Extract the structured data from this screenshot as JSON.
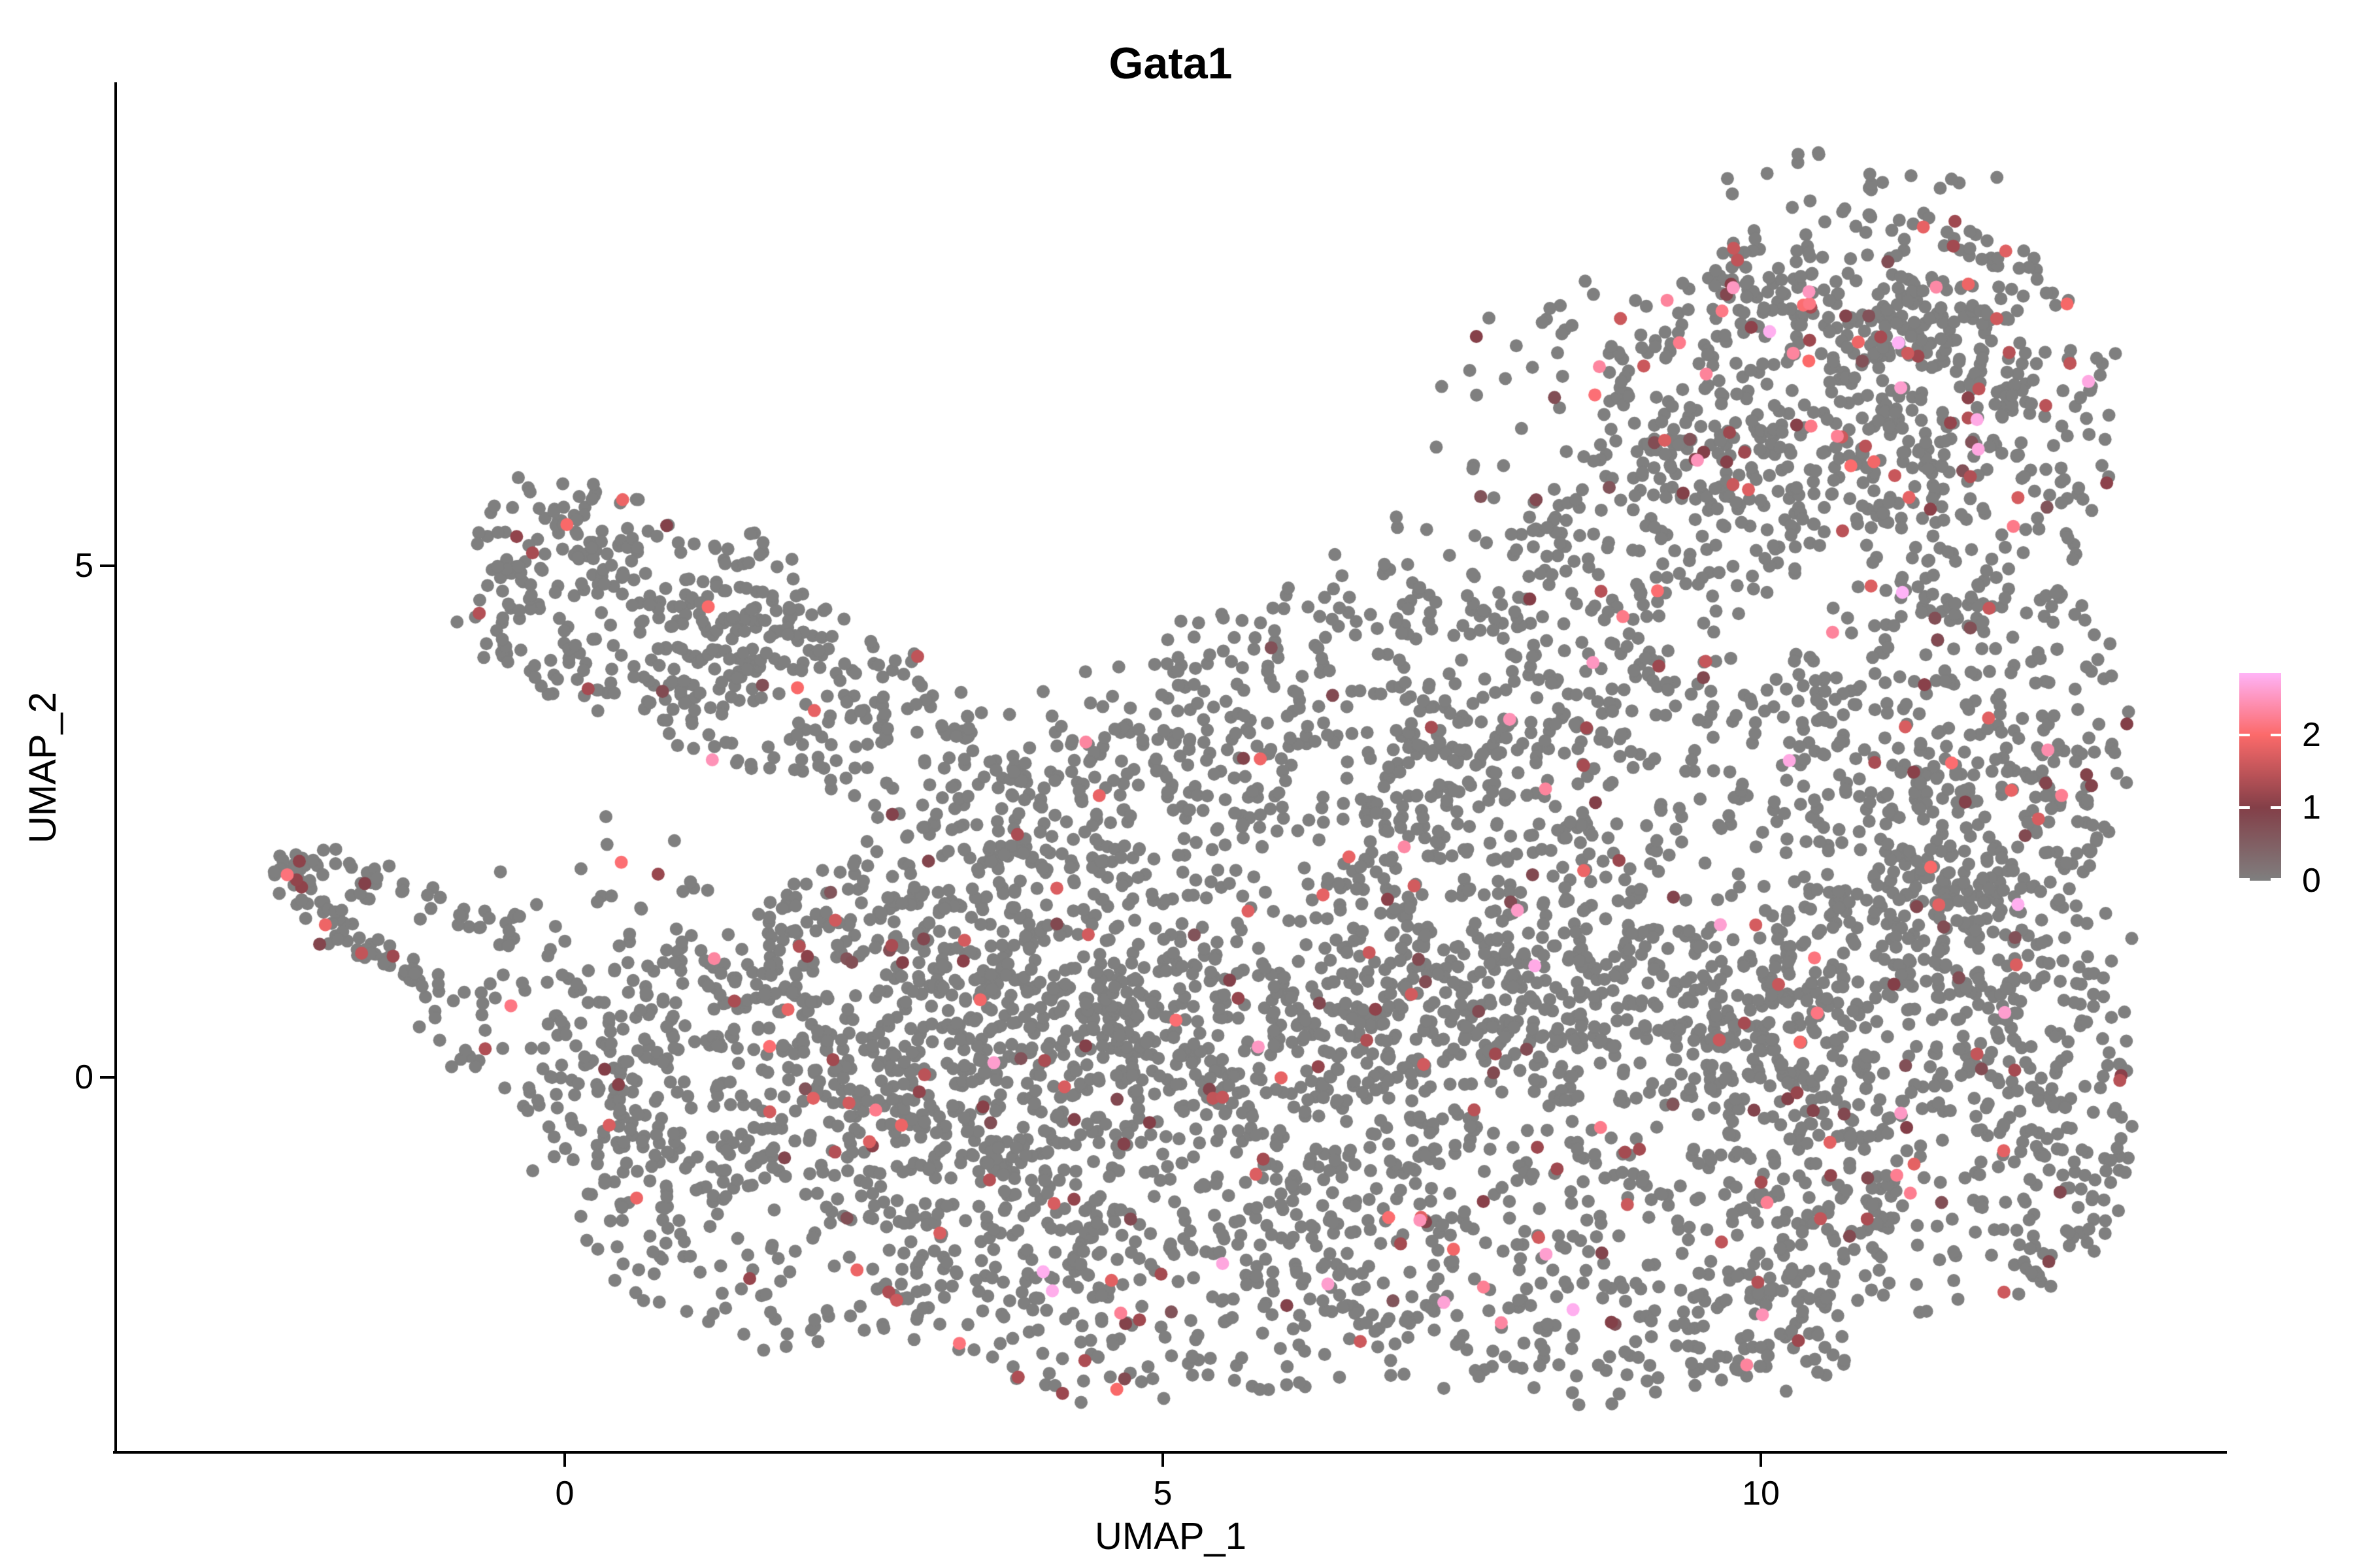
{
  "title": "Gata1",
  "axes": {
    "x": {
      "label": "UMAP_1",
      "ticks": [
        {
          "value": 0,
          "label": "0"
        },
        {
          "value": 5,
          "label": "5"
        },
        {
          "value": 10,
          "label": "10"
        }
      ]
    },
    "y": {
      "label": "UMAP_2",
      "ticks": [
        {
          "value": 5,
          "label": "5"
        },
        {
          "value": 0,
          "label": "0"
        }
      ]
    }
  },
  "colorbar": {
    "tick_values": [
      2,
      1,
      0
    ],
    "tick_labels": [
      "2",
      "1",
      "0"
    ],
    "max_value": 2.85,
    "stops": [
      {
        "value": 0,
        "color": "#7F7F7F"
      },
      {
        "value": 1,
        "color": "#833F48"
      },
      {
        "value": 2,
        "color": "#FC6A6A"
      },
      {
        "value": 2.85,
        "color": "#FFB3F7"
      }
    ]
  },
  "chart_data": {
    "type": "scatter",
    "title": "Gata1",
    "xlabel": "UMAP_1",
    "ylabel": "UMAP_2",
    "x_ticks": [
      0,
      5,
      10
    ],
    "y_ticks": [
      0,
      5
    ],
    "xlim": [
      -3.8,
      13.9
    ],
    "ylim": [
      -3.7,
      9.7
    ],
    "grid": false,
    "legend_position": "right",
    "n_points_approx": 6500,
    "point_radius_px": 10,
    "zero_expression_color": "#7F7F7F",
    "seed": 11,
    "clusters": [
      {
        "name": "main-left",
        "cx": 2.3,
        "cy": -0.4,
        "rx": 2.6,
        "ry": 2.3,
        "n": 530,
        "expr_prob": 0.05
      },
      {
        "name": "main-left-bulge",
        "cx": 1.0,
        "cy": 0.1,
        "rx": 1.4,
        "ry": 1.2,
        "n": 170,
        "expr_prob": 0.05
      },
      {
        "name": "main-bottom-left",
        "cx": 5.0,
        "cy": -1.0,
        "rx": 2.8,
        "ry": 2.2,
        "n": 650,
        "expr_prob": 0.05
      },
      {
        "name": "main-bottom-right",
        "cx": 8.3,
        "cy": -0.8,
        "rx": 3.0,
        "ry": 2.4,
        "n": 730,
        "expr_prob": 0.05
      },
      {
        "name": "main-bottom-dip",
        "cx": 9.9,
        "cy": -2.5,
        "rx": 0.9,
        "ry": 0.6,
        "n": 60,
        "expr_prob": 0.05
      },
      {
        "name": "main-right",
        "cx": 11.3,
        "cy": -0.2,
        "rx": 1.9,
        "ry": 2.2,
        "n": 400,
        "expr_prob": 0.05
      },
      {
        "name": "main-right-edge",
        "cx": 12.0,
        "cy": 1.6,
        "rx": 1.0,
        "ry": 2.2,
        "n": 220,
        "expr_prob": 0.06
      },
      {
        "name": "main-br-corner",
        "cx": 12.4,
        "cy": -1.2,
        "rx": 0.7,
        "ry": 0.9,
        "n": 55,
        "expr_prob": 0.05
      },
      {
        "name": "main-mid-upper",
        "cx": 5.8,
        "cy": 1.6,
        "rx": 3.2,
        "ry": 2.0,
        "n": 600,
        "expr_prob": 0.04
      },
      {
        "name": "main-upper-right",
        "cx": 9.2,
        "cy": 2.0,
        "rx": 2.8,
        "ry": 2.2,
        "n": 600,
        "expr_prob": 0.05
      },
      {
        "name": "main-right-upper-col",
        "cx": 11.6,
        "cy": 3.4,
        "rx": 1.5,
        "ry": 1.8,
        "n": 240,
        "expr_prob": 0.06
      },
      {
        "name": "main-left-mid",
        "cx": 3.4,
        "cy": 1.0,
        "rx": 1.8,
        "ry": 1.5,
        "n": 280,
        "expr_prob": 0.04
      },
      {
        "name": "main-top-bump",
        "cx": 4.4,
        "cy": 3.0,
        "rx": 1.6,
        "ry": 1.0,
        "n": 120,
        "expr_prob": 0.03
      },
      {
        "name": "main-top-ridge",
        "cx": 7.0,
        "cy": 3.9,
        "rx": 2.2,
        "ry": 1.0,
        "n": 200,
        "expr_prob": 0.04
      },
      {
        "name": "lobe-core",
        "cx": 10.4,
        "cy": 6.7,
        "rx": 1.8,
        "ry": 1.4,
        "n": 380,
        "expr_prob": 0.1
      },
      {
        "name": "lobe-right",
        "cx": 11.8,
        "cy": 6.2,
        "rx": 1.2,
        "ry": 1.8,
        "n": 230,
        "expr_prob": 0.1
      },
      {
        "name": "lobe-neck",
        "cx": 9.3,
        "cy": 5.4,
        "rx": 1.3,
        "ry": 1.0,
        "n": 150,
        "expr_prob": 0.08
      },
      {
        "name": "lobe-top",
        "cx": 10.9,
        "cy": 7.8,
        "rx": 1.4,
        "ry": 0.75,
        "n": 130,
        "expr_prob": 0.12
      },
      {
        "name": "lobe-bay-sparse",
        "cx": 8.6,
        "cy": 6.5,
        "rx": 1.5,
        "ry": 1.3,
        "n": 55,
        "expr_prob": 0.08
      },
      {
        "name": "lobe-top-halo",
        "cx": 10.8,
        "cy": 8.7,
        "rx": 1.2,
        "ry": 0.4,
        "n": 25,
        "expr_prob": 0.08
      },
      {
        "name": "lobe-bridge",
        "cx": 7.5,
        "cy": 4.9,
        "rx": 1.2,
        "ry": 0.6,
        "n": 45,
        "expr_prob": 0.06
      },
      {
        "name": "topleft-core",
        "cx": 0.7,
        "cy": 4.5,
        "rx": 1.5,
        "ry": 0.95,
        "n": 230,
        "expr_prob": 0.03
      },
      {
        "name": "topleft-lower",
        "cx": 1.8,
        "cy": 3.8,
        "rx": 1.2,
        "ry": 0.85,
        "n": 140,
        "expr_prob": 0.03
      },
      {
        "name": "topleft-top",
        "cx": 0.0,
        "cy": 5.3,
        "rx": 0.75,
        "ry": 0.6,
        "n": 70,
        "expr_prob": 0.03
      },
      {
        "name": "topleft-bridge",
        "cx": 2.9,
        "cy": 3.1,
        "rx": 0.9,
        "ry": 0.7,
        "n": 45,
        "expr_prob": 0.03
      },
      {
        "name": "gap-sparse",
        "cx": 0.4,
        "cy": 1.6,
        "rx": 1.0,
        "ry": 0.9,
        "n": 25,
        "expr_prob": 0.04
      },
      {
        "name": "hook-tip",
        "cx": -2.25,
        "cy": 2.0,
        "rx": 0.2,
        "ry": 0.18,
        "n": 16,
        "expr_prob": 0.12
      },
      {
        "name": "hook-sparse-end",
        "cx": -0.55,
        "cy": 0.55,
        "rx": 0.75,
        "ry": 0.55,
        "n": 35,
        "expr_prob": 0.05
      }
    ],
    "arms": [
      {
        "name": "hook-arm-lower",
        "x0": -2.3,
        "y0": 2.05,
        "cx": -1.8,
        "cy": 1.15,
        "x1": -1.05,
        "y1": 0.85,
        "halfwidth": 0.13,
        "n": 60,
        "expr_prob": 0.06
      },
      {
        "name": "hook-arm-upper",
        "x0": -2.15,
        "y0": 2.1,
        "cx": -1.2,
        "cy": 1.75,
        "x1": -0.35,
        "y1": 1.35,
        "halfwidth": 0.15,
        "n": 50,
        "expr_prob": 0.06
      }
    ],
    "highlights": [
      {
        "x": -2.32,
        "y": 1.98,
        "v": 2.1
      },
      {
        "x": -2.2,
        "y": 1.86,
        "v": 1.1
      },
      {
        "x": 4.0,
        "y": -1.9,
        "v": 2.8
      },
      {
        "x": 5.5,
        "y": -1.82,
        "v": 2.7
      },
      {
        "x": 8.43,
        "y": -2.27,
        "v": 2.8
      },
      {
        "x": 8.11,
        "y": 1.09,
        "v": 2.75
      },
      {
        "x": 12.15,
        "y": 1.69,
        "v": 2.8
      },
      {
        "x": 11.17,
        "y": -0.35,
        "v": 2.55
      },
      {
        "x": 8.66,
        "y": -0.49,
        "v": 2.2
      },
      {
        "x": 11.17,
        "y": 6.74,
        "v": 2.6
      },
      {
        "x": 9.32,
        "y": 7.18,
        "v": 2.2
      },
      {
        "x": 6.38,
        "y": -2.02,
        "v": 2.6
      },
      {
        "x": 2.6,
        "y": -0.32,
        "v": 2.2
      },
      {
        "x": 7.9,
        "y": 3.5,
        "v": 2.45
      },
      {
        "x": 1.2,
        "y": 4.6,
        "v": 2.0
      },
      {
        "x": 10.6,
        "y": 4.35,
        "v": 2.3
      },
      {
        "x": 3.3,
        "y": -2.6,
        "v": 2.1
      },
      {
        "x": 12.4,
        "y": 3.2,
        "v": 2.4
      },
      {
        "x": 7.35,
        "y": -2.2,
        "v": 2.65
      },
      {
        "x": -0.45,
        "y": 0.7,
        "v": 2.15
      }
    ]
  }
}
